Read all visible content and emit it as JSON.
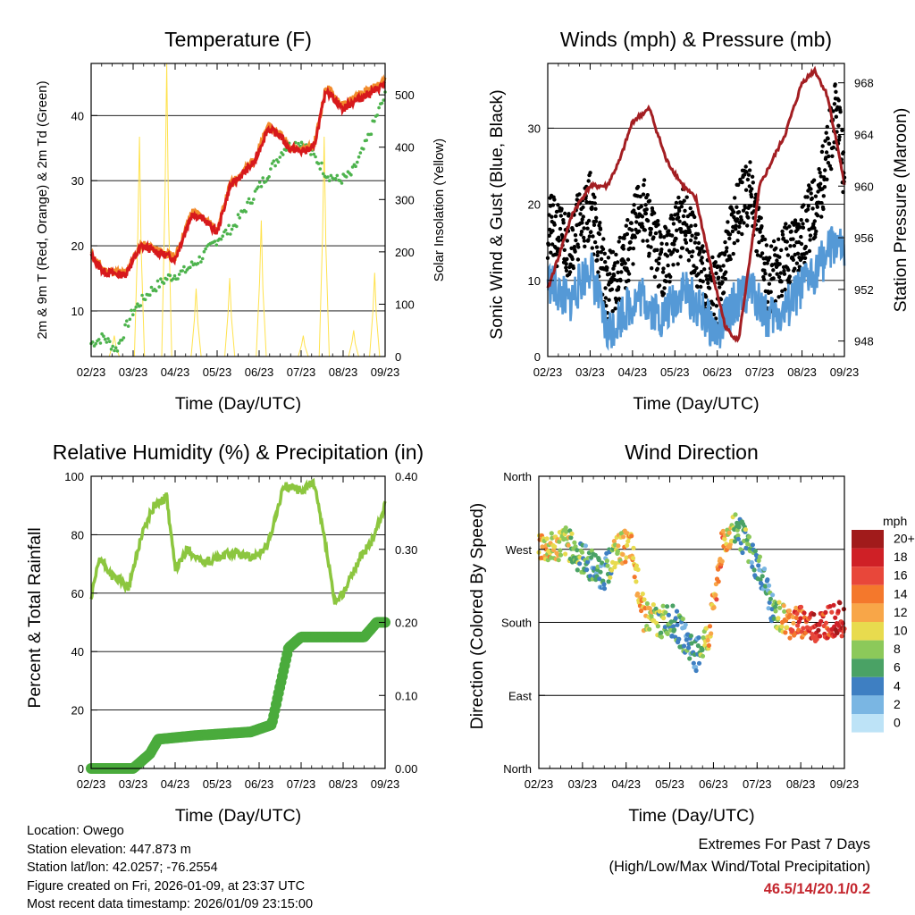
{
  "chart_data": [
    {
      "type": "line",
      "title": "Temperature (F)",
      "xlabel": "Time (Day/UTC)",
      "ylabel": "2m & 9m T (Red, Orange) & 2m Td (Green)",
      "y2label": "Solar Insolation (Yellow)",
      "x_ticks": [
        "02/23",
        "03/23",
        "04/23",
        "05/23",
        "06/23",
        "07/23",
        "08/23",
        "09/23"
      ],
      "ylim": [
        3,
        48
      ],
      "yticks": [
        "10",
        "20",
        "30",
        "40"
      ],
      "y2lim": [
        0,
        560
      ],
      "y2ticks": [
        "0",
        "100",
        "200",
        "300",
        "400",
        "500"
      ],
      "colors": {
        "temp2m": "#d7191c",
        "temp9m": "#f28b2c",
        "dewpoint": "#4db34d",
        "solar": "#ffe24d"
      },
      "series": [
        {
          "name": "2m T",
          "x": [
            0,
            0.3,
            0.8,
            1.2,
            1.6,
            2.0,
            2.4,
            2.7,
            3.0,
            3.3,
            3.6,
            3.9,
            4.2,
            4.5,
            4.7,
            5.0,
            5.3,
            5.6,
            6.0,
            6.2,
            6.5,
            6.8,
            7.0
          ],
          "values": [
            18.5,
            16,
            15.5,
            20,
            19,
            18,
            25,
            24,
            22,
            29,
            31,
            33,
            38,
            37,
            35,
            34.5,
            35,
            44,
            41,
            42,
            43,
            44,
            45
          ]
        },
        {
          "name": "9m T",
          "x": [
            0,
            0.3,
            0.8,
            1.2,
            1.6,
            2.0,
            2.4,
            2.7,
            3.0,
            3.3,
            3.6,
            3.9,
            4.2,
            4.5,
            4.7,
            5.0,
            5.3,
            5.6,
            6.0,
            6.2,
            6.5,
            6.8,
            7.0
          ],
          "values": [
            18.7,
            16.3,
            15.8,
            20.3,
            19.3,
            18.3,
            25.3,
            24.3,
            22.3,
            29.3,
            31.3,
            33.3,
            38.3,
            37.3,
            35.3,
            34.8,
            35.3,
            44.5,
            41.5,
            42.5,
            43.5,
            44.5,
            45.5
          ]
        },
        {
          "name": "2m Td",
          "x": [
            0,
            0.3,
            0.6,
            1.0,
            1.4,
            1.8,
            2.2,
            2.6,
            3.0,
            3.4,
            3.8,
            4.2,
            4.6,
            5.0,
            5.4,
            5.6,
            5.9,
            6.2,
            6.5,
            6.8,
            7.0
          ],
          "values": [
            5,
            6,
            4,
            10,
            13,
            15,
            16,
            18,
            21,
            23,
            27,
            31,
            35,
            36,
            33,
            31,
            30,
            31,
            35,
            40,
            43
          ]
        },
        {
          "name": "Solar Insolation",
          "axis": "y2",
          "x": [
            0.55,
            1.15,
            1.8,
            2.5,
            3.3,
            4.05,
            5.05,
            5.55,
            6.25,
            6.75
          ],
          "values": [
            40,
            420,
            560,
            130,
            150,
            260,
            40,
            420,
            50,
            160
          ]
        }
      ]
    },
    {
      "type": "scatter",
      "title": "Winds (mph) & Pressure (mb)",
      "xlabel": "Time (Day/UTC)",
      "ylabel": "Sonic Wind & Gust (Blue, Black)",
      "y2label": "Station Pressure (Maroon)",
      "x_ticks": [
        "02/23",
        "03/23",
        "04/23",
        "05/23",
        "06/23",
        "07/23",
        "08/23",
        "09/23"
      ],
      "ylim": [
        0,
        38.5
      ],
      "yticks": [
        "0",
        "10",
        "20",
        "30"
      ],
      "y2lim": [
        946.8,
        969.5
      ],
      "y2ticks": [
        "948",
        "952",
        "956",
        "960",
        "964",
        "968"
      ],
      "colors": {
        "wind": "#5599d6",
        "gust": "#000000",
        "pressure": "#a31e22"
      },
      "series": [
        {
          "name": "Sonic Wind",
          "x": [
            0,
            0.5,
            1.0,
            1.4,
            1.8,
            2.2,
            2.7,
            3.2,
            3.6,
            4.0,
            4.4,
            4.8,
            5.2,
            5.6,
            6.0,
            6.4,
            6.8,
            7.0
          ],
          "values": [
            10,
            7,
            12,
            3,
            6,
            8,
            5,
            9,
            6,
            3,
            7,
            9,
            5,
            6,
            9,
            12,
            15,
            13
          ]
        },
        {
          "name": "Gust",
          "x": [
            0,
            0.5,
            1.0,
            1.4,
            1.8,
            2.2,
            2.7,
            3.2,
            3.6,
            4.0,
            4.4,
            4.8,
            5.2,
            5.6,
            6.0,
            6.4,
            6.8,
            7.0
          ],
          "values": [
            17,
            15,
            20,
            9,
            12,
            20,
            12,
            18,
            12,
            8,
            18,
            22,
            10,
            13,
            16,
            21,
            32,
            24
          ]
        },
        {
          "name": "Station Pressure",
          "axis": "y2",
          "x": [
            0,
            0.3,
            0.6,
            1.0,
            1.4,
            1.7,
            2.0,
            2.4,
            2.8,
            3.2,
            3.5,
            3.9,
            4.2,
            4.5,
            4.8,
            5.0,
            5.3,
            5.6,
            6.0,
            6.3,
            6.6,
            6.9,
            7.0
          ],
          "values": [
            952,
            955,
            958,
            960,
            960,
            962,
            965,
            966,
            962,
            960,
            959,
            953,
            949,
            948,
            955,
            960,
            962,
            964,
            968,
            969,
            967,
            962,
            960
          ]
        }
      ]
    },
    {
      "type": "line",
      "title": "Relative Humidity (%) & Precipitation (in)",
      "xlabel": "Time (Day/UTC)",
      "ylabel": "Percent & Total Rainfall",
      "x_ticks": [
        "02/23",
        "03/23",
        "04/23",
        "05/23",
        "06/23",
        "07/23",
        "08/23",
        "09/23"
      ],
      "ylim": [
        0,
        100
      ],
      "yticks": [
        "0",
        "20",
        "40",
        "60",
        "80",
        "100"
      ],
      "y2lim": [
        0,
        0.4
      ],
      "y2ticks": [
        "0.00",
        "0.10",
        "0.20",
        "0.30",
        "0.40"
      ],
      "colors": {
        "rh": "#8cc63f",
        "precip": "#4aab3c"
      },
      "series": [
        {
          "name": "Relative Humidity",
          "x": [
            0,
            0.2,
            0.5,
            0.9,
            1.2,
            1.5,
            1.8,
            2.0,
            2.3,
            2.7,
            3.0,
            3.4,
            3.8,
            4.2,
            4.6,
            5.0,
            5.3,
            5.6,
            5.8,
            6.0,
            6.4,
            6.7,
            7.0
          ],
          "values": [
            58,
            72,
            66,
            62,
            80,
            90,
            93,
            68,
            75,
            70,
            72,
            74,
            72,
            76,
            97,
            95,
            98,
            75,
            56,
            60,
            72,
            78,
            90
          ]
        },
        {
          "name": "Total Precipitation",
          "axis": "y2",
          "x": [
            0,
            1.0,
            1.4,
            1.6,
            2.5,
            3.8,
            4.3,
            4.45,
            4.7,
            5.0,
            5.5,
            6.0,
            6.5,
            6.8,
            7.0
          ],
          "values": [
            0,
            0,
            0.02,
            0.04,
            0.045,
            0.05,
            0.06,
            0.1,
            0.165,
            0.18,
            0.18,
            0.18,
            0.18,
            0.2,
            0.2
          ]
        }
      ]
    },
    {
      "type": "scatter",
      "title": "Wind Direction",
      "xlabel": "Time (Day/UTC)",
      "ylabel": "Direction (Colored By Speed)",
      "x_ticks": [
        "02/23",
        "03/23",
        "04/23",
        "05/23",
        "06/23",
        "07/23",
        "08/23",
        "09/23"
      ],
      "ylim": [
        0,
        360
      ],
      "y_tick_labels": [
        "North",
        "East",
        "South",
        "West",
        "North"
      ],
      "legend": {
        "title": "mph",
        "labels": [
          "20+",
          "18",
          "16",
          "14",
          "12",
          "10",
          "8",
          "6",
          "4",
          "2",
          "0"
        ],
        "colors": [
          "#a11b1b",
          "#cf2026",
          "#e8473a",
          "#f4782c",
          "#f8a648",
          "#e8db4e",
          "#8cc95a",
          "#4aa265",
          "#3e7fc2",
          "#7ab6e3",
          "#bde3f7"
        ]
      },
      "series": [
        {
          "name": "Wind Direction",
          "x": [
            0,
            0.3,
            0.6,
            0.9,
            1.2,
            1.5,
            1.8,
            2.1,
            2.4,
            2.7,
            3.0,
            3.3,
            3.6,
            3.9,
            4.2,
            4.5,
            4.8,
            5.1,
            5.4,
            5.7,
            6.0,
            6.3,
            6.6,
            6.9,
            7.0
          ],
          "values": [
            275,
            270,
            280,
            262,
            250,
            240,
            270,
            275,
            190,
            180,
            185,
            165,
            140,
            165,
            275,
            300,
            270,
            240,
            190,
            180,
            180,
            175,
            180,
            185,
            180
          ],
          "speeds": [
            12,
            10,
            9,
            7,
            5,
            4,
            10,
            12,
            12,
            8,
            6,
            5,
            4,
            12,
            14,
            8,
            6,
            4,
            5,
            14,
            15,
            18,
            16,
            20,
            18
          ]
        }
      ]
    }
  ],
  "footer": {
    "location": "Location: Owego",
    "elevation": "Station elevation: 447.873 m",
    "latlon": "Station lat/lon: 42.0257; -76.2554",
    "created": "Figure created on Fri, 2026-01-09, at 23:37 UTC",
    "recent": "Most recent data timestamp: 2026/01/09 23:15:00"
  },
  "extremes": {
    "title": "Extremes For Past 7 Days",
    "subtitle": "(High/Low/Max Wind/Total Precipitation)",
    "values": "46.5/14/20.1/0.2"
  }
}
